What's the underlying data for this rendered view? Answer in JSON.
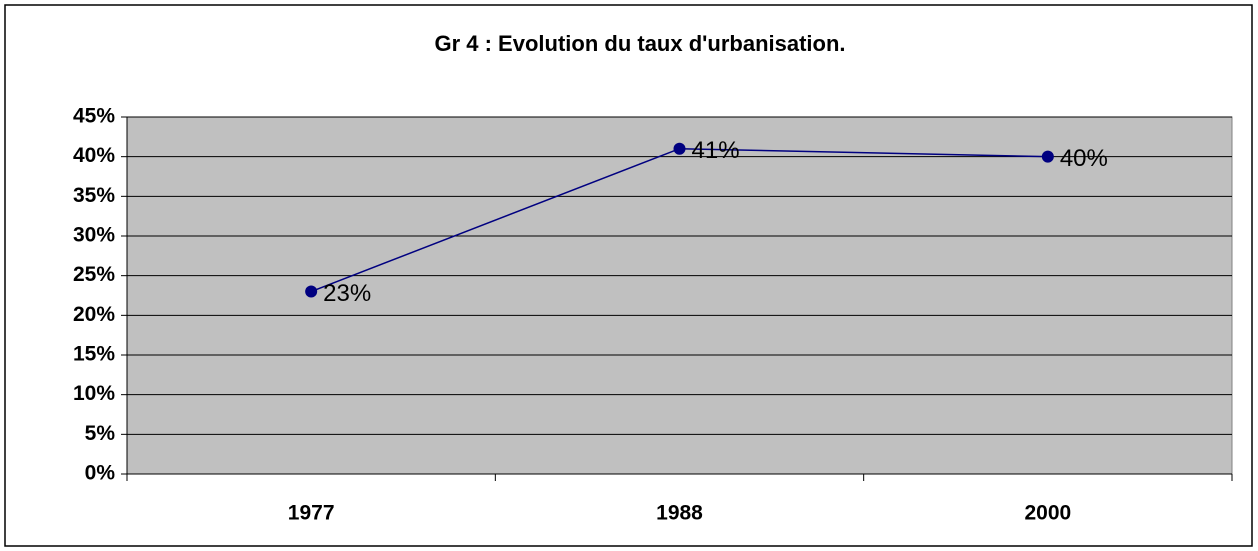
{
  "chart_data": {
    "type": "line",
    "title": "Gr 4 : Evolution du taux d'urbanisation.",
    "categories": [
      "1977",
      "1988",
      "2000"
    ],
    "values": [
      23,
      41,
      40
    ],
    "value_labels": [
      "23%",
      "41%",
      "40%"
    ],
    "color": "#000080",
    "ylim": [
      0,
      45
    ],
    "yticks": [
      {
        "value": 0,
        "label": "0%"
      },
      {
        "value": 5,
        "label": "5%"
      },
      {
        "value": 10,
        "label": "10%"
      },
      {
        "value": 15,
        "label": "15%"
      },
      {
        "value": 20,
        "label": "20%"
      },
      {
        "value": 25,
        "label": "25%"
      },
      {
        "value": 30,
        "label": "30%"
      },
      {
        "value": 35,
        "label": "35%"
      },
      {
        "value": 40,
        "label": "40%"
      },
      {
        "value": 45,
        "label": "45%"
      }
    ],
    "grid": true
  }
}
